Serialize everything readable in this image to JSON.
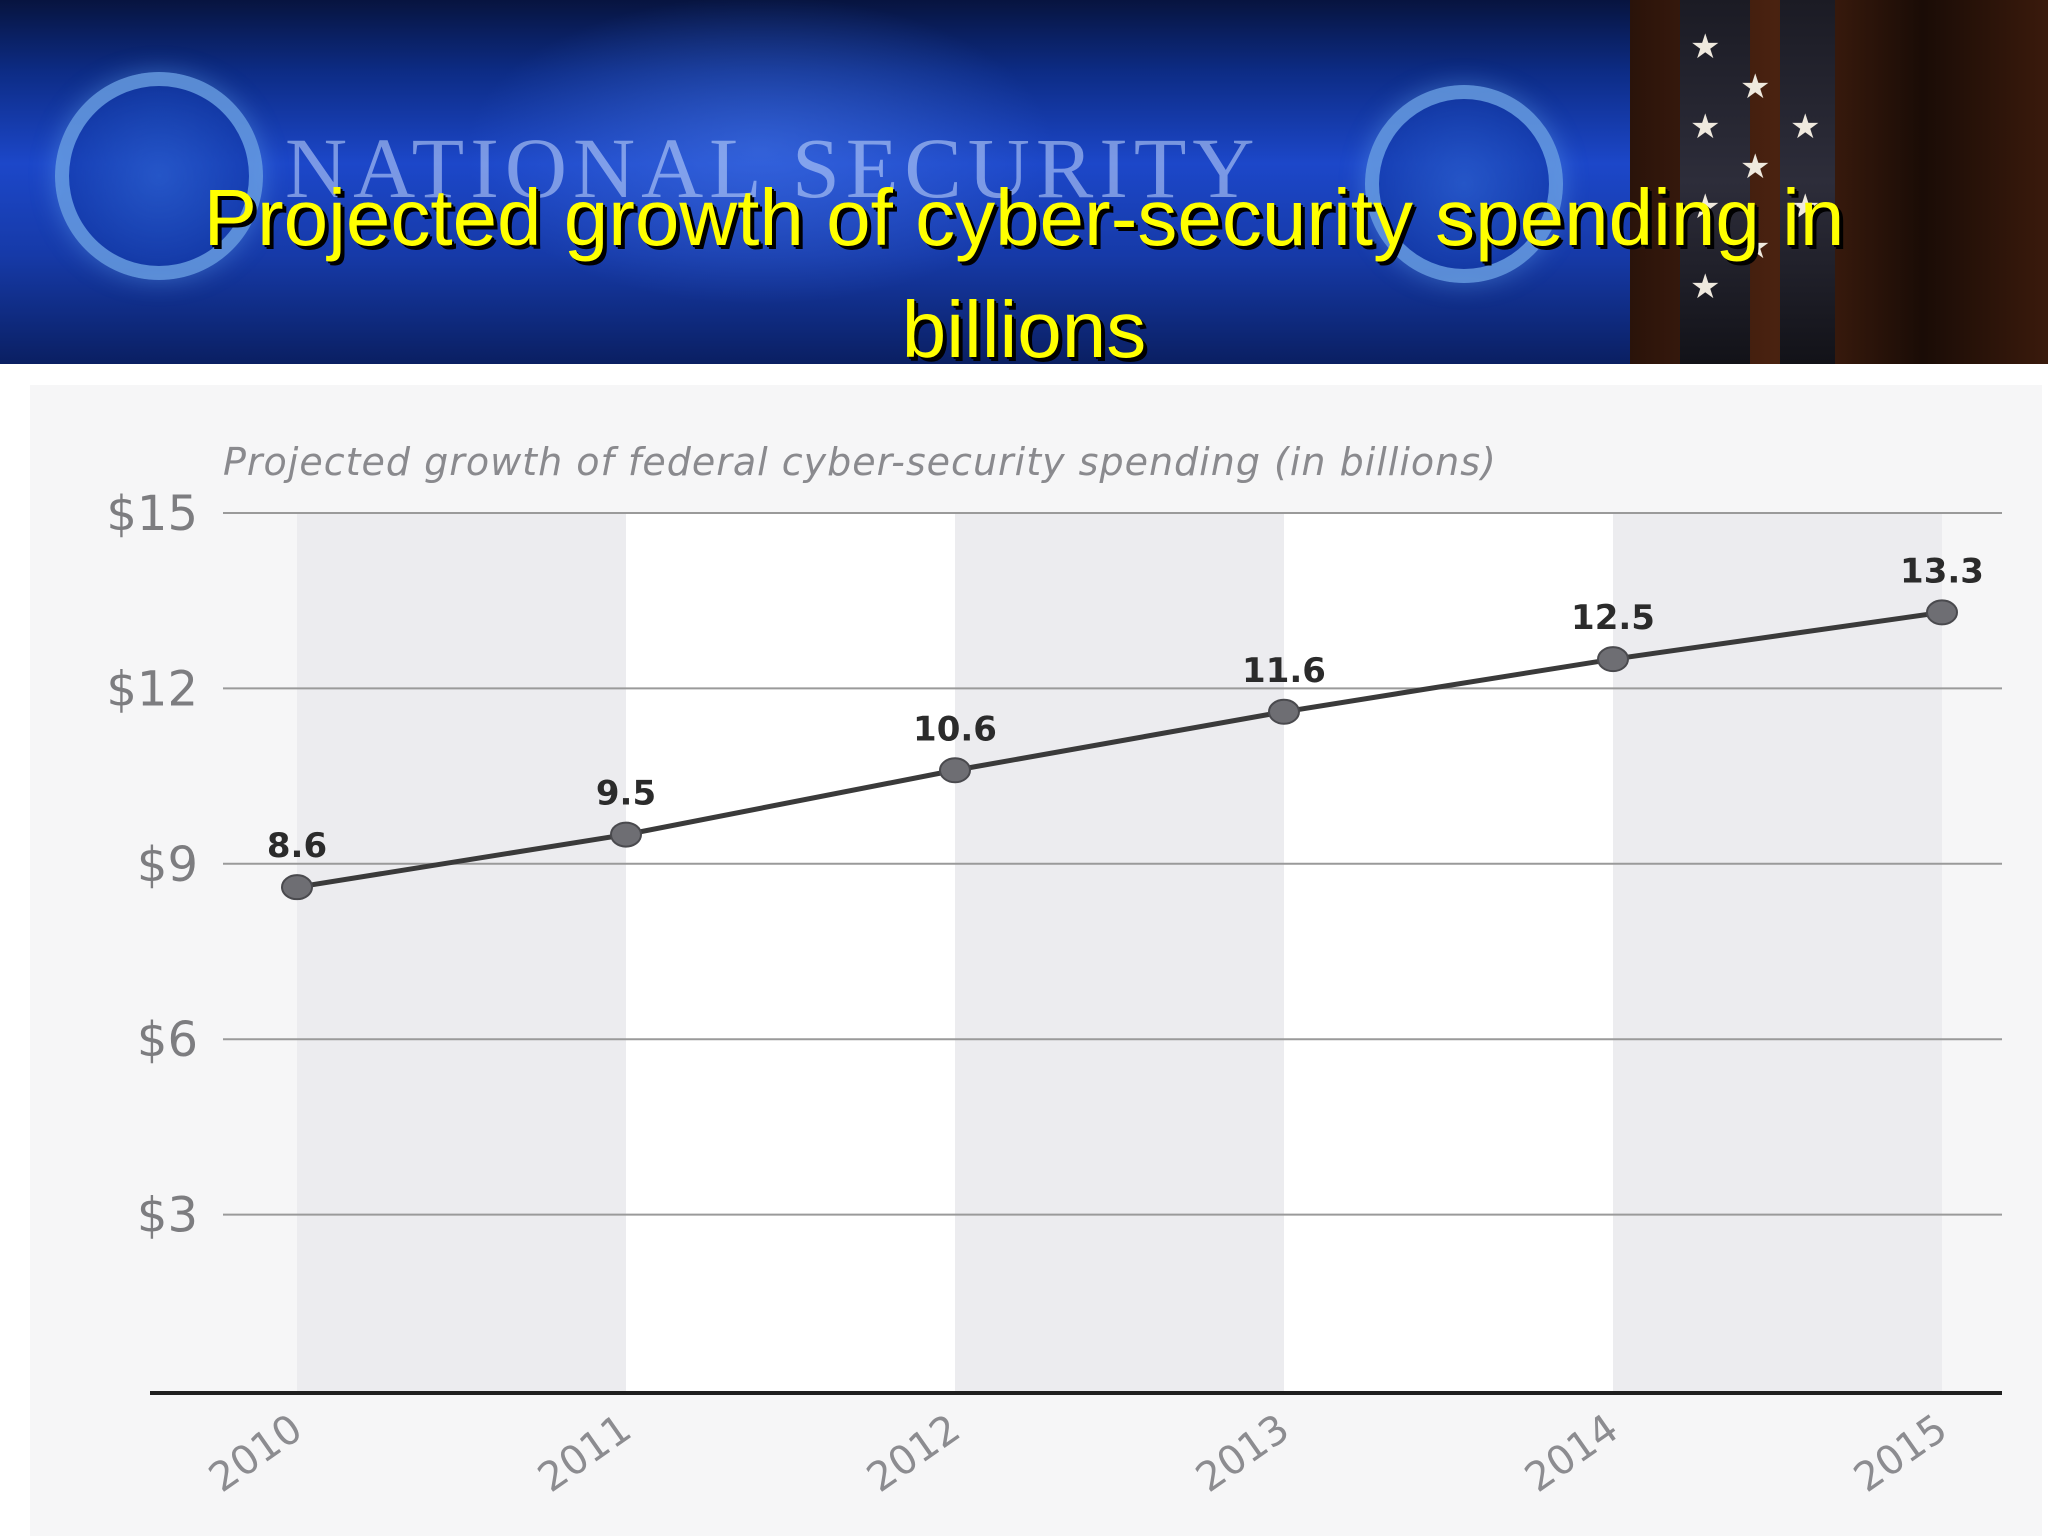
{
  "slide": {
    "title_line1": "Projected growth of cyber-security spending in",
    "title_line2": "billions",
    "banner_text": "NATIONAL SECURITY"
  },
  "colors": {
    "title": "#ffff00",
    "banner_blue": "#1c47c9",
    "line": "#3a3a3a",
    "marker": "#6e6e73",
    "gridline": "#9a9a9a",
    "panel": "#f6f6f7"
  },
  "chart_data": {
    "type": "line",
    "title": "Projected growth of federal cyber-security spending (in billions)",
    "xlabel": "",
    "ylabel": "",
    "categories": [
      "2010",
      "2011",
      "2012",
      "2013",
      "2014",
      "2015"
    ],
    "series": [
      {
        "values": [
          8.6,
          9.5,
          10.6,
          11.6,
          12.5,
          13.3
        ]
      }
    ],
    "data_labels": [
      "8.6",
      "9.5",
      "10.6",
      "11.6",
      "12.5",
      "13.3"
    ],
    "ylim": [
      0,
      15
    ],
    "yticks": [
      3,
      6,
      9,
      12,
      15
    ],
    "ytick_labels": [
      "$3",
      "$6",
      "$9",
      "$12",
      "$15"
    ],
    "grid": "horizontal",
    "legend": "none"
  }
}
